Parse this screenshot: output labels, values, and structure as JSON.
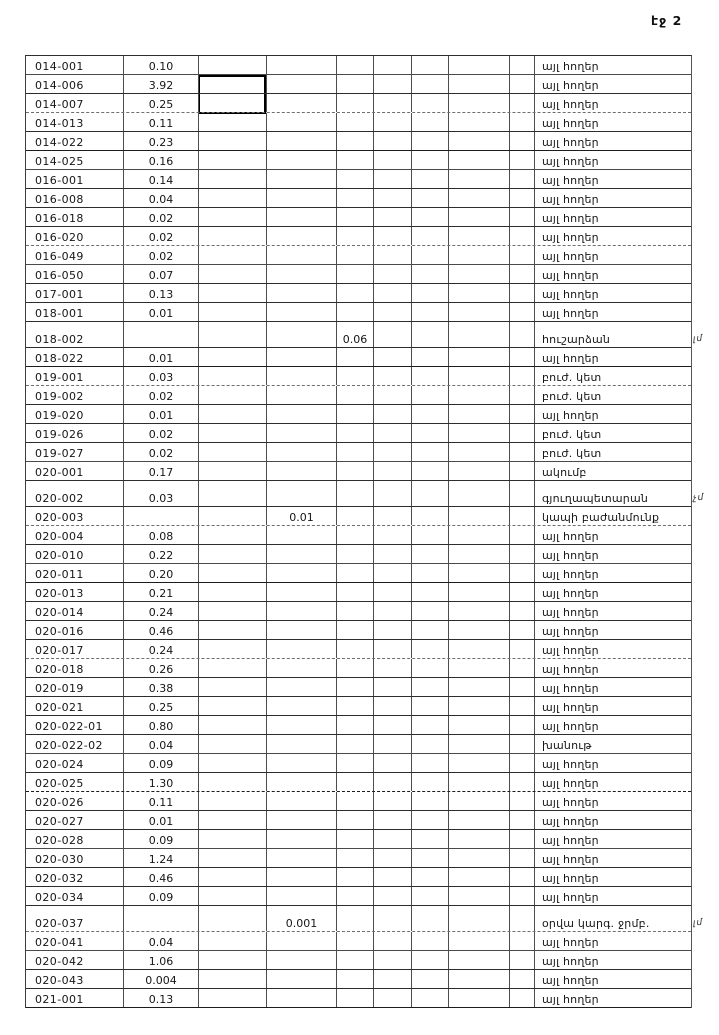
{
  "page": {
    "label": "էջ 2"
  },
  "table": {
    "rows": [
      {
        "cells": [
          "014-001",
          "0.10",
          "",
          "",
          "",
          "",
          "",
          "",
          "",
          "այլ հողեր"
        ]
      },
      {
        "cells": [
          "014-006",
          "3.92",
          "",
          "",
          "",
          "",
          "",
          "",
          "",
          "այլ հողեր"
        ]
      },
      {
        "cells": [
          "014-007",
          "0.25",
          "",
          "",
          "",
          "",
          "",
          "",
          "",
          "այլ հողեր"
        ]
      },
      {
        "cells": [
          "014-013",
          "0.11",
          "",
          "",
          "",
          "",
          "",
          "",
          "",
          "այլ հողեր"
        ]
      },
      {
        "cells": [
          "014-022",
          "0.23",
          "",
          "",
          "",
          "",
          "",
          "",
          "",
          "այլ հողեր"
        ]
      },
      {
        "cells": [
          "014-025",
          "0.16",
          "",
          "",
          "",
          "",
          "",
          "",
          "",
          "այլ հողեր"
        ]
      },
      {
        "cells": [
          "016-001",
          "0.14",
          "",
          "",
          "",
          "",
          "",
          "",
          "",
          "այլ հողեր"
        ]
      },
      {
        "cells": [
          "016-008",
          "0.04",
          "",
          "",
          "",
          "",
          "",
          "",
          "",
          "այլ հողեր"
        ]
      },
      {
        "cells": [
          "016-018",
          "0.02",
          "",
          "",
          "",
          "",
          "",
          "",
          "",
          "այլ հողեր"
        ]
      },
      {
        "cells": [
          "016-020",
          "0.02",
          "",
          "",
          "",
          "",
          "",
          "",
          "",
          "այլ հողեր"
        ]
      },
      {
        "cells": [
          "016-049",
          "0.02",
          "",
          "",
          "",
          "",
          "",
          "",
          "",
          "այլ հողեր"
        ]
      },
      {
        "cells": [
          "016-050",
          "0.07",
          "",
          "",
          "",
          "",
          "",
          "",
          "",
          "այլ հողեր"
        ]
      },
      {
        "cells": [
          "017-001",
          "0.13",
          "",
          "",
          "",
          "",
          "",
          "",
          "",
          "այլ հողեր"
        ]
      },
      {
        "cells": [
          "018-001",
          "0.01",
          "",
          "",
          "",
          "",
          "",
          "",
          "",
          "այլ հողեր"
        ]
      },
      {
        "cells": [
          "018-002",
          "",
          "",
          "",
          "0.06",
          "",
          "",
          "",
          "",
          "հուշարձան"
        ],
        "tall": true,
        "note": "լմ"
      },
      {
        "cells": [
          "018-022",
          "0.01",
          "",
          "",
          "",
          "",
          "",
          "",
          "",
          "այլ հողեր"
        ]
      },
      {
        "cells": [
          "019-001",
          "0.03",
          "",
          "",
          "",
          "",
          "",
          "",
          "",
          "բուժ. կետ"
        ]
      },
      {
        "cells": [
          "019-002",
          "0.02",
          "",
          "",
          "",
          "",
          "",
          "",
          "",
          "բուժ. կետ"
        ]
      },
      {
        "cells": [
          "019-020",
          "0.01",
          "",
          "",
          "",
          "",
          "",
          "",
          "",
          "այլ հողեր"
        ]
      },
      {
        "cells": [
          "019-026",
          "0.02",
          "",
          "",
          "",
          "",
          "",
          "",
          "",
          "բուժ. կետ"
        ]
      },
      {
        "cells": [
          "019-027",
          "0.02",
          "",
          "",
          "",
          "",
          "",
          "",
          "",
          "բուժ. կետ"
        ]
      },
      {
        "cells": [
          "020-001",
          "0.17",
          "",
          "",
          "",
          "",
          "",
          "",
          "",
          "ակումբ"
        ]
      },
      {
        "cells": [
          "020-002",
          "0.03",
          "",
          "",
          "",
          "",
          "",
          "",
          "",
          "գյուղապետարան"
        ],
        "tall": true,
        "note": "չմ"
      },
      {
        "cells": [
          "020-003",
          "",
          "",
          "0.01",
          "",
          "",
          "",
          "",
          "",
          "կապի բաժանմունք"
        ]
      },
      {
        "cells": [
          "020-004",
          "0.08",
          "",
          "",
          "",
          "",
          "",
          "",
          "",
          "այլ հողեր"
        ]
      },
      {
        "cells": [
          "020-010",
          "0.22",
          "",
          "",
          "",
          "",
          "",
          "",
          "",
          "այլ հողեր"
        ]
      },
      {
        "cells": [
          "020-011",
          "0.20",
          "",
          "",
          "",
          "",
          "",
          "",
          "",
          "այլ հողեր"
        ]
      },
      {
        "cells": [
          "020-013",
          "0.21",
          "",
          "",
          "",
          "",
          "",
          "",
          "",
          "այլ հողեր"
        ]
      },
      {
        "cells": [
          "020-014",
          "0.24",
          "",
          "",
          "",
          "",
          "",
          "",
          "",
          "այլ հողեր"
        ]
      },
      {
        "cells": [
          "020-016",
          "0.46",
          "",
          "",
          "",
          "",
          "",
          "",
          "",
          "այլ հողեր"
        ]
      },
      {
        "cells": [
          "020-017",
          "0.24",
          "",
          "",
          "",
          "",
          "",
          "",
          "",
          "այլ հողեր"
        ]
      },
      {
        "cells": [
          "020-018",
          "0.26",
          "",
          "",
          "",
          "",
          "",
          "",
          "",
          "այլ հողեր"
        ]
      },
      {
        "cells": [
          "020-019",
          "0.38",
          "",
          "",
          "",
          "",
          "",
          "",
          "",
          "այլ հողեր"
        ]
      },
      {
        "cells": [
          "020-021",
          "0.25",
          "",
          "",
          "",
          "",
          "",
          "",
          "",
          "այլ հողեր"
        ]
      },
      {
        "cells": [
          "020-022-01",
          "0.80",
          "",
          "",
          "",
          "",
          "",
          "",
          "",
          "այլ հողեր"
        ]
      },
      {
        "cells": [
          "020-022-02",
          "0.04",
          "",
          "",
          "",
          "",
          "",
          "",
          "",
          "խանութ"
        ]
      },
      {
        "cells": [
          "020-024",
          "0.09",
          "",
          "",
          "",
          "",
          "",
          "",
          "",
          "այլ հողեր"
        ]
      },
      {
        "cells": [
          "020-025",
          "1.30",
          "",
          "",
          "",
          "",
          "",
          "",
          "",
          "այլ հողեր"
        ]
      },
      {
        "cells": [
          "020-026",
          "0.11",
          "",
          "",
          "",
          "",
          "",
          "",
          "",
          "այլ հողեր"
        ]
      },
      {
        "cells": [
          "020-027",
          "0.01",
          "",
          "",
          "",
          "",
          "",
          "",
          "",
          "այլ հողեր"
        ]
      },
      {
        "cells": [
          "020-028",
          "0.09",
          "",
          "",
          "",
          "",
          "",
          "",
          "",
          "այլ հողեր"
        ]
      },
      {
        "cells": [
          "020-030",
          "1.24",
          "",
          "",
          "",
          "",
          "",
          "",
          "",
          "այլ հողեր"
        ]
      },
      {
        "cells": [
          "020-032",
          "0.46",
          "",
          "",
          "",
          "",
          "",
          "",
          "",
          "այլ հողեր"
        ]
      },
      {
        "cells": [
          "020-034",
          "0.09",
          "",
          "",
          "",
          "",
          "",
          "",
          "",
          "այլ հողեր"
        ]
      },
      {
        "cells": [
          "020-037",
          "",
          "",
          "0.001",
          "",
          "",
          "",
          "",
          "",
          "օրվա կարգ. ջրմբ."
        ],
        "tall": true,
        "note": "լմ"
      },
      {
        "cells": [
          "020-041",
          "0.04",
          "",
          "",
          "",
          "",
          "",
          "",
          "",
          "այլ հողեր"
        ]
      },
      {
        "cells": [
          "020-042",
          "1.06",
          "",
          "",
          "",
          "",
          "",
          "",
          "",
          "այլ հողեր"
        ]
      },
      {
        "cells": [
          "020-043",
          "0.004",
          "",
          "",
          "",
          "",
          "",
          "",
          "",
          "այլ հողեր"
        ]
      },
      {
        "cells": [
          "021-001",
          "0.13",
          "",
          "",
          "",
          "",
          "",
          "",
          "",
          "այլ հողեր"
        ]
      }
    ]
  }
}
